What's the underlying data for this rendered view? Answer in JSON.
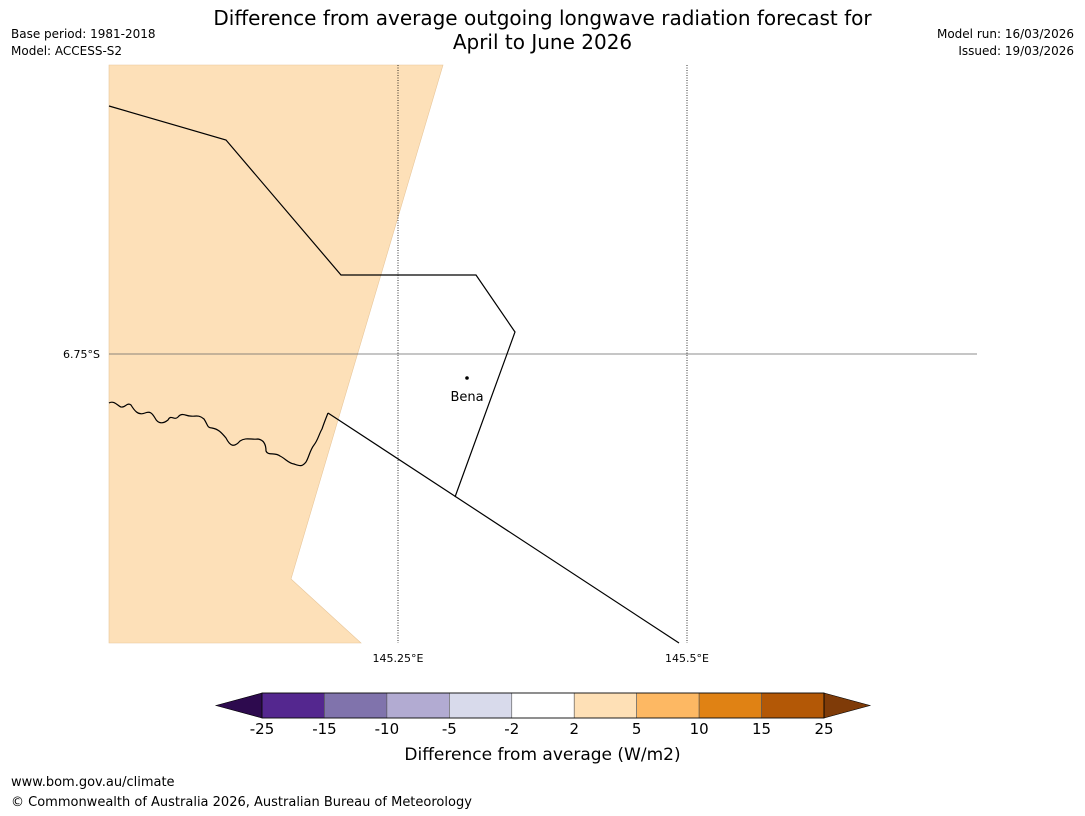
{
  "title": {
    "line1": "Difference from average outgoing longwave radiation forecast for",
    "line2": "April to June 2026"
  },
  "meta": {
    "base_period": "Base period: 1981-2018",
    "model": "Model: ACCESS-S2",
    "model_run": "Model run: 16/03/2026",
    "issued": "Issued: 19/03/2026"
  },
  "map": {
    "lat_label": "6.75°S",
    "lon_labels": [
      "145.25°E",
      "145.5°E"
    ],
    "place_label": "Bena",
    "land_fill_color": "#fde0b8",
    "land_fill_category": "2 to 5"
  },
  "colorbar": {
    "label": "Difference from average (W/m2)",
    "ticks": [
      "-25",
      "-15",
      "-10",
      "-5",
      "-2",
      "2",
      "5",
      "10",
      "15",
      "25"
    ],
    "bins": [
      {
        "range": "< -25",
        "color": "#2d0a4e"
      },
      {
        "range": "-25 to -15",
        "color": "#54278f"
      },
      {
        "range": "-15 to -10",
        "color": "#8073ac"
      },
      {
        "range": "-10 to -5",
        "color": "#b2abd2"
      },
      {
        "range": "-5 to -2",
        "color": "#d8daeb"
      },
      {
        "range": "-2 to 2",
        "color": "#ffffff"
      },
      {
        "range": "2 to 5",
        "color": "#fee0b6"
      },
      {
        "range": "5 to 10",
        "color": "#fdb863"
      },
      {
        "range": "10 to 15",
        "color": "#e08214"
      },
      {
        "range": "15 to 25",
        "color": "#b35806"
      },
      {
        "range": "> 25",
        "color": "#7f3b08"
      }
    ]
  },
  "footer": {
    "url": "www.bom.gov.au/climate",
    "copyright": "© Commonwealth of Australia 2026, Australian Bureau of Meteorology"
  }
}
